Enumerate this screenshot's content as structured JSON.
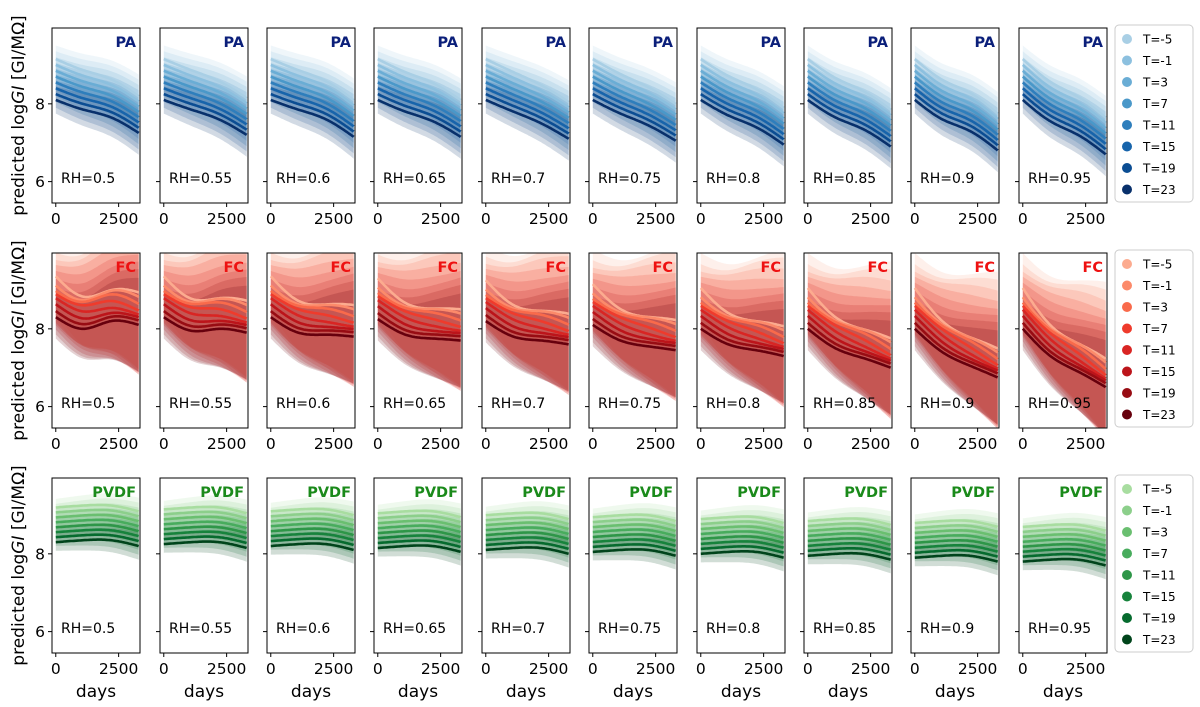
{
  "chart_data": [
    {
      "type": "line",
      "material": "PA",
      "tag": "PA",
      "tag_color": "#0b1f7a",
      "ylabel_prefix": "predicted log",
      "ylabel_italic": "GI",
      "ylabel_suffix": " [GI/MΩ]",
      "xlabel": "",
      "xlim": [
        -150,
        3350
      ],
      "ylim": [
        5.45,
        9.95
      ],
      "xticks": [
        "0",
        "2500"
      ],
      "yticks": [
        "6",
        "8"
      ],
      "legend": [
        "T=-5",
        "T=-1",
        "T=3",
        "T=7",
        "T=11",
        "T=15",
        "T=19",
        "T=23"
      ],
      "colors": [
        "#a9cfe5",
        "#8cc0df",
        "#6aadd5",
        "#4a98c9",
        "#2e7ebc",
        "#1764ab",
        "#0b4d93",
        "#08306b"
      ],
      "panels": [
        {
          "rh": "RH=0.5",
          "series": [
            {
              "values": [
                8.2,
                7.95,
                7.75,
                7.35
              ]
            },
            {
              "values": [
                8.1,
                7.85,
                7.65,
                7.25
              ]
            }
          ]
        },
        {
          "rh": "RH=0.55",
          "series": [
            {
              "values": [
                8.2,
                7.95,
                7.7,
                7.3
              ]
            },
            {
              "values": [
                8.1,
                7.85,
                7.6,
                7.2
              ]
            }
          ]
        },
        {
          "rh": "RH=0.6",
          "series": [
            {
              "values": [
                8.2,
                7.95,
                7.7,
                7.25
              ]
            },
            {
              "values": [
                8.1,
                7.85,
                7.6,
                7.15
              ]
            }
          ]
        },
        {
          "rh": "RH=0.65",
          "series": [
            {
              "values": [
                8.2,
                7.9,
                7.65,
                7.25
              ]
            },
            {
              "values": [
                8.1,
                7.8,
                7.55,
                7.15
              ]
            }
          ]
        },
        {
          "rh": "RH=0.7",
          "series": [
            {
              "values": [
                8.2,
                7.9,
                7.6,
                7.2
              ]
            },
            {
              "values": [
                8.1,
                7.8,
                7.5,
                7.1
              ]
            }
          ]
        },
        {
          "rh": "RH=0.75",
          "series": [
            {
              "values": [
                8.2,
                7.85,
                7.55,
                7.15
              ]
            },
            {
              "values": [
                8.1,
                7.75,
                7.45,
                7.05
              ]
            }
          ]
        },
        {
          "rh": "RH=0.8",
          "series": [
            {
              "values": [
                8.2,
                7.8,
                7.5,
                7.05
              ]
            },
            {
              "values": [
                8.1,
                7.7,
                7.4,
                6.95
              ]
            }
          ]
        },
        {
          "rh": "RH=0.85",
          "series": [
            {
              "values": [
                8.2,
                7.75,
                7.45,
                7.0
              ]
            },
            {
              "values": [
                8.1,
                7.65,
                7.35,
                6.9
              ]
            }
          ]
        },
        {
          "rh": "RH=0.9",
          "series": [
            {
              "values": [
                8.2,
                7.7,
                7.4,
                6.9
              ]
            },
            {
              "values": [
                8.1,
                7.6,
                7.3,
                6.8
              ]
            }
          ]
        },
        {
          "rh": "RH=0.95",
          "series": [
            {
              "values": [
                8.2,
                7.65,
                7.3,
                6.8
              ]
            },
            {
              "values": [
                8.1,
                7.55,
                7.2,
                6.7
              ]
            }
          ]
        }
      ]
    },
    {
      "type": "line",
      "material": "FC",
      "tag": "FC",
      "tag_color": "#ee1111",
      "ylabel_prefix": "predicted log",
      "ylabel_italic": "GI",
      "ylabel_suffix": " [GI/MΩ]",
      "xlabel": "",
      "xlim": [
        -150,
        3350
      ],
      "ylim": [
        5.45,
        9.95
      ],
      "xticks": [
        "0",
        "2500"
      ],
      "yticks": [
        "6",
        "8"
      ],
      "legend": [
        "T=-5",
        "T=-1",
        "T=3",
        "T=7",
        "T=11",
        "T=15",
        "T=19",
        "T=23"
      ],
      "colors": [
        "#fcab8f",
        "#fc8a6a",
        "#f96a4b",
        "#ef3b2c",
        "#d92523",
        "#bc141a",
        "#980c13",
        "#67000d"
      ],
      "panels": [
        {
          "rh": "RH=0.5",
          "series": [
            {
              "values": [
                8.5,
                8.3,
                8.2,
                8.1
              ]
            },
            {
              "values": [
                8.3,
                8.0,
                8.2,
                8.1
              ]
            }
          ]
        },
        {
          "rh": "RH=0.55",
          "series": [
            {
              "values": [
                8.5,
                8.2,
                8.0,
                7.9
              ]
            },
            {
              "values": [
                8.3,
                7.95,
                8.0,
                7.9
              ]
            }
          ]
        },
        {
          "rh": "RH=0.6",
          "series": [
            {
              "values": [
                8.5,
                8.1,
                7.9,
                7.8
              ]
            },
            {
              "values": [
                8.3,
                7.9,
                7.85,
                7.8
              ]
            }
          ]
        },
        {
          "rh": "RH=0.65",
          "series": [
            {
              "values": [
                8.4,
                8.0,
                7.8,
                7.7
              ]
            },
            {
              "values": [
                8.25,
                7.85,
                7.75,
                7.7
              ]
            }
          ]
        },
        {
          "rh": "RH=0.7",
          "series": [
            {
              "values": [
                8.3,
                7.9,
                7.7,
                7.6
              ]
            },
            {
              "values": [
                8.2,
                7.8,
                7.7,
                7.6
              ]
            }
          ]
        },
        {
          "rh": "RH=0.75",
          "series": [
            {
              "values": [
                8.2,
                7.8,
                7.6,
                7.45
              ]
            },
            {
              "values": [
                8.1,
                7.7,
                7.55,
                7.45
              ]
            }
          ]
        },
        {
          "rh": "RH=0.8",
          "series": [
            {
              "values": [
                8.1,
                7.7,
                7.5,
                7.3
              ]
            },
            {
              "values": [
                8.0,
                7.6,
                7.45,
                7.3
              ]
            }
          ]
        },
        {
          "rh": "RH=0.85",
          "series": [
            {
              "values": [
                8.1,
                7.6,
                7.3,
                7.05
              ]
            },
            {
              "values": [
                8.0,
                7.5,
                7.25,
                7.0
              ]
            }
          ]
        },
        {
          "rh": "RH=0.9",
          "series": [
            {
              "values": [
                8.1,
                7.5,
                7.1,
                6.8
              ]
            },
            {
              "values": [
                8.0,
                7.4,
                7.05,
                6.75
              ]
            }
          ]
        },
        {
          "rh": "RH=0.95",
          "series": [
            {
              "values": [
                8.1,
                7.4,
                6.95,
                6.55
              ]
            },
            {
              "values": [
                8.0,
                7.3,
                6.9,
                6.5
              ]
            }
          ]
        }
      ]
    },
    {
      "type": "line",
      "material": "PVDF",
      "tag": "PVDF",
      "tag_color": "#1a8a1a",
      "ylabel_prefix": "predicted log",
      "ylabel_italic": "GI",
      "ylabel_suffix": " [GI/MΩ]",
      "xlabel": "days",
      "xlim": [
        -150,
        3350
      ],
      "ylim": [
        5.45,
        9.95
      ],
      "xticks": [
        "0",
        "2500"
      ],
      "yticks": [
        "6",
        "8"
      ],
      "legend": [
        "T=-5",
        "T=-1",
        "T=3",
        "T=7",
        "T=11",
        "T=15",
        "T=19",
        "T=23"
      ],
      "colors": [
        "#a8dda0",
        "#8ccf8b",
        "#6abf70",
        "#48ac5d",
        "#2e9648",
        "#17833c",
        "#066b2e",
        "#00441b"
      ],
      "panels": [
        {
          "rh": "RH=0.5",
          "series": [
            {
              "values": [
                8.3,
                8.35,
                8.35,
                8.2
              ]
            }
          ]
        },
        {
          "rh": "RH=0.55",
          "series": [
            {
              "values": [
                8.25,
                8.3,
                8.3,
                8.15
              ]
            }
          ]
        },
        {
          "rh": "RH=0.6",
          "series": [
            {
              "values": [
                8.2,
                8.25,
                8.25,
                8.1
              ]
            }
          ]
        },
        {
          "rh": "RH=0.65",
          "series": [
            {
              "values": [
                8.15,
                8.2,
                8.2,
                8.05
              ]
            }
          ]
        },
        {
          "rh": "RH=0.7",
          "series": [
            {
              "values": [
                8.1,
                8.15,
                8.15,
                8.0
              ]
            }
          ]
        },
        {
          "rh": "RH=0.75",
          "series": [
            {
              "values": [
                8.05,
                8.1,
                8.1,
                7.95
              ]
            }
          ]
        },
        {
          "rh": "RH=0.8",
          "series": [
            {
              "values": [
                8.0,
                8.05,
                8.05,
                7.9
              ]
            }
          ]
        },
        {
          "rh": "RH=0.85",
          "series": [
            {
              "values": [
                7.95,
                8.0,
                8.0,
                7.85
              ]
            }
          ]
        },
        {
          "rh": "RH=0.9",
          "series": [
            {
              "values": [
                7.9,
                7.95,
                7.95,
                7.8
              ]
            }
          ]
        },
        {
          "rh": "RH=0.95",
          "series": [
            {
              "values": [
                7.8,
                7.85,
                7.85,
                7.7
              ]
            }
          ]
        }
      ]
    }
  ]
}
